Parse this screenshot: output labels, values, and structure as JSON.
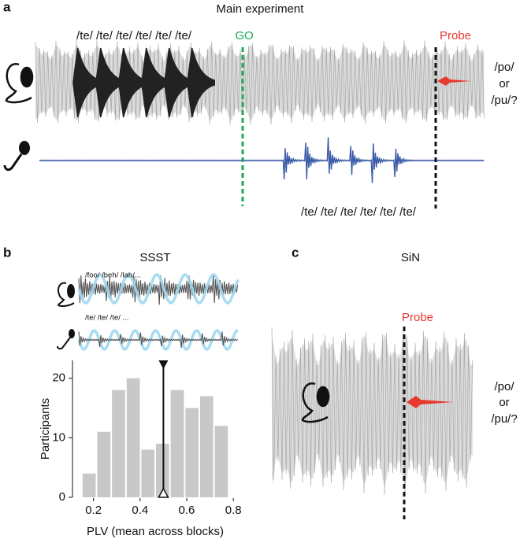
{
  "panel_a": {
    "label": "a",
    "title": "Main experiment",
    "stimulus_text": "/te/ /te/ /te/ /te/ /te/ /te/",
    "go_label": "GO",
    "probe_label": "Probe",
    "choice": [
      "/po/",
      "or",
      "/pu/?"
    ],
    "response_text": "/te/ /te/ /te/ /te/ /te/ /te/"
  },
  "panel_b": {
    "label": "b",
    "title": "SSST",
    "stimulus_text": "/foo/ /beh/ /lah/...",
    "response_text": "/te/ /te/ /te/ ...",
    "chart": {
      "type": "histogram",
      "bins": [
        0.15,
        0.213,
        0.276,
        0.339,
        0.402,
        0.465,
        0.528,
        0.591,
        0.654,
        0.717,
        0.78
      ],
      "counts": [
        4,
        11,
        18,
        20,
        8,
        9,
        18,
        15,
        17,
        12
      ],
      "color": "#c8c8c8",
      "xlim": [
        0.11,
        0.84
      ],
      "xticks": [
        0.2,
        0.4,
        0.6,
        0.8
      ],
      "ylim": [
        0,
        23
      ],
      "yticks": [
        0,
        10,
        20
      ],
      "xlabel": "PLV (mean across blocks)",
      "ylabel": "Participants",
      "marker_x": 0.5
    }
  },
  "panel_c": {
    "label": "c",
    "title": "SiN",
    "probe_label": "Probe",
    "choice": [
      "/po/",
      "or",
      "/pu/?"
    ]
  }
}
